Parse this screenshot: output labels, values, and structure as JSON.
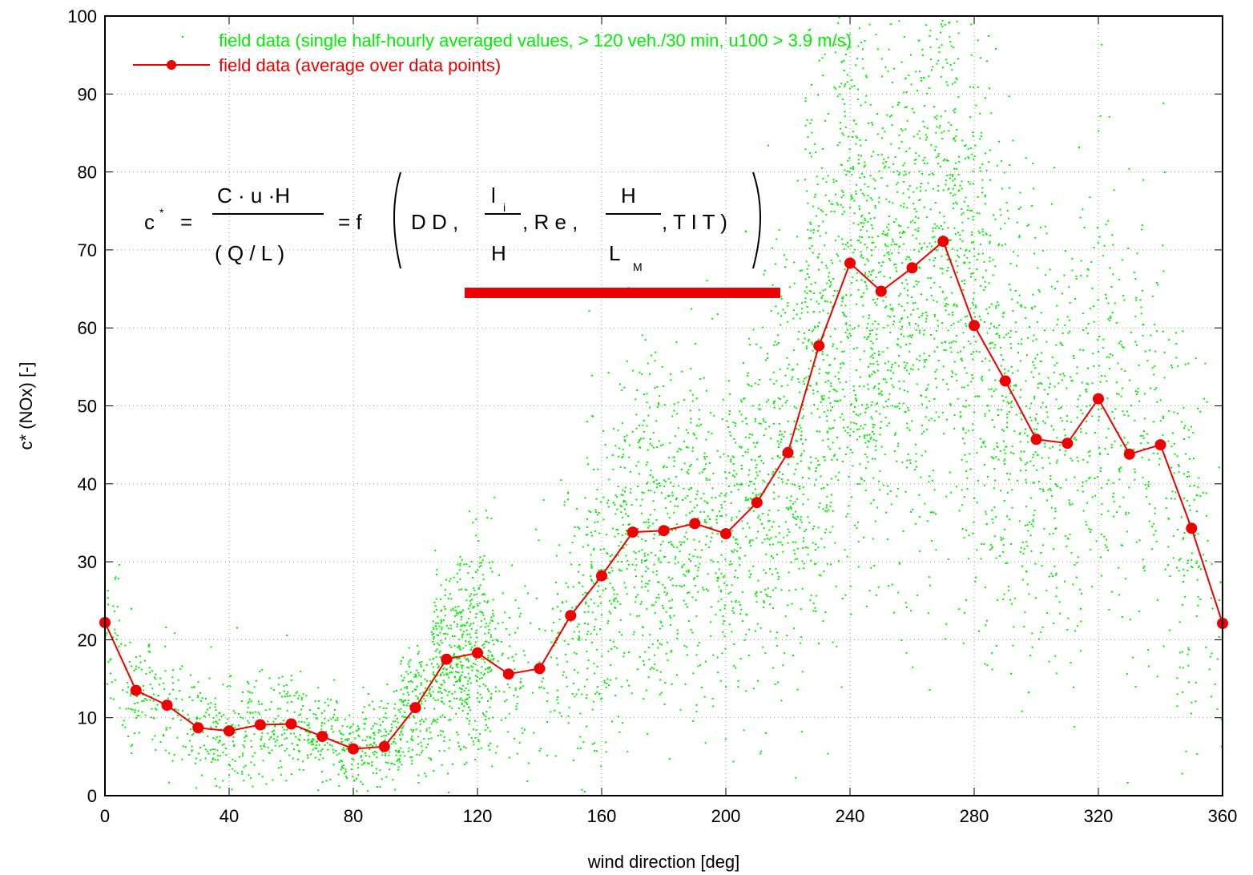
{
  "chart_data": {
    "type": "scatter",
    "xlabel": "wind direction [deg]",
    "ylabel": "c* (NOx) [-]",
    "xlim": [
      0,
      360
    ],
    "ylim": [
      0,
      100
    ],
    "xticks": [
      0,
      40,
      80,
      120,
      160,
      200,
      240,
      280,
      320,
      360
    ],
    "yticks": [
      0,
      10,
      20,
      30,
      40,
      50,
      60,
      70,
      80,
      90,
      100
    ],
    "grid": true,
    "legend_position": "top-left",
    "series": [
      {
        "name": "field data (single half-hourly averaged values, > 120 veh./30 min, u100 > 3.9 m/s)",
        "kind": "scatter",
        "color": "#00ee00",
        "density_profile": {
          "x": [
            0,
            10,
            20,
            30,
            40,
            50,
            60,
            70,
            80,
            90,
            100,
            110,
            120,
            130,
            140,
            150,
            160,
            170,
            180,
            190,
            200,
            210,
            220,
            230,
            240,
            250,
            260,
            270,
            280,
            290,
            300,
            310,
            320,
            330,
            340,
            350,
            360
          ],
          "center": [
            22,
            13.5,
            11.5,
            8.7,
            8.3,
            9.0,
            9.2,
            7.6,
            6.0,
            6.3,
            11.3,
            17.5,
            18.3,
            15.6,
            16.3,
            23.1,
            28.2,
            33.8,
            34.0,
            34.9,
            33.6,
            37.6,
            44.0,
            57.7,
            68.3,
            64.7,
            67.7,
            71.1,
            60.3,
            53.2,
            45.7,
            45.2,
            50.9,
            43.8,
            45.0,
            34.3,
            22.1
          ],
          "spread": [
            6,
            4,
            4,
            3.5,
            3.5,
            3.5,
            3.5,
            3,
            3,
            3,
            4.5,
            6,
            7,
            7,
            8,
            9,
            10,
            11,
            11,
            11,
            11,
            12,
            14,
            17,
            19,
            18,
            18,
            19,
            18,
            16,
            15,
            15,
            15,
            14,
            14,
            12,
            8
          ],
          "count": [
            50,
            70,
            60,
            70,
            90,
            90,
            90,
            90,
            110,
            120,
            160,
            260,
            260,
            70,
            40,
            110,
            170,
            190,
            190,
            170,
            170,
            190,
            230,
            300,
            320,
            300,
            300,
            300,
            260,
            210,
            170,
            150,
            130,
            110,
            90,
            110,
            40
          ]
        }
      },
      {
        "name": "field data (average over data points)",
        "kind": "line",
        "color": "#ee0000",
        "x": [
          0,
          10,
          20,
          30,
          40,
          50,
          60,
          70,
          80,
          90,
          100,
          110,
          120,
          130,
          140,
          150,
          160,
          170,
          180,
          190,
          200,
          210,
          220,
          230,
          240,
          250,
          260,
          270,
          280,
          290,
          300,
          310,
          320,
          330,
          340,
          350,
          360
        ],
        "y": [
          22.2,
          13.5,
          11.6,
          8.7,
          8.3,
          9.1,
          9.2,
          7.6,
          6.0,
          6.3,
          11.3,
          17.5,
          18.3,
          15.6,
          16.3,
          23.1,
          28.2,
          33.8,
          34.0,
          34.9,
          33.6,
          37.6,
          44.0,
          57.7,
          68.3,
          64.7,
          67.7,
          71.1,
          60.3,
          53.2,
          45.7,
          45.2,
          50.9,
          43.8,
          45.0,
          34.3,
          22.1
        ]
      }
    ],
    "annotation": {
      "formula": "c* = C · u · H / (Q / L) = f ( D D , l_i / H , R e , H / L_M , T I T )",
      "highlight_bar_color": "#ee0000"
    }
  }
}
